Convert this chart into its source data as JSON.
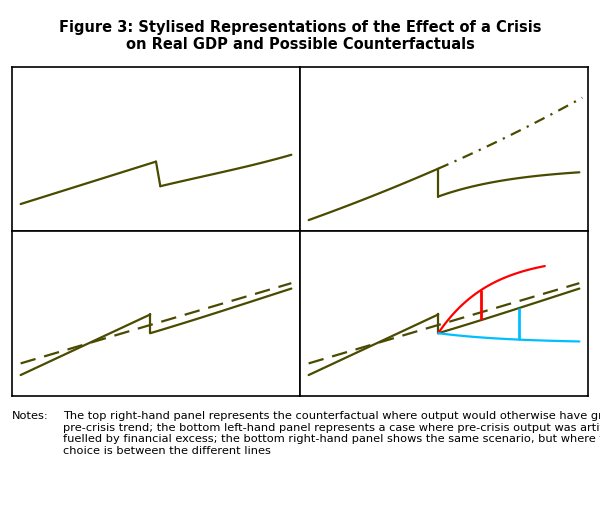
{
  "title": "Figure 3: Stylised Representations of the Effect of a Crisis\non Real GDP and Possible Counterfactuals",
  "title_fontsize": 10.5,
  "line_color": "#4a4a00",
  "notes_label": "Notes:",
  "notes_text": "The top right-hand panel represents the counterfactual where output would otherwise have grown at\npre-crisis trend; the bottom left-hand panel represents a case where pre-crisis output was artificially high,\nfuelled by financial excess; the bottom right-hand panel shows the same scenario, but where the policy\nchoice is between the different lines",
  "notes_fontsize": 8.2,
  "red_color": "#ff0000",
  "blue_color": "#00bfff",
  "background": "#ffffff"
}
